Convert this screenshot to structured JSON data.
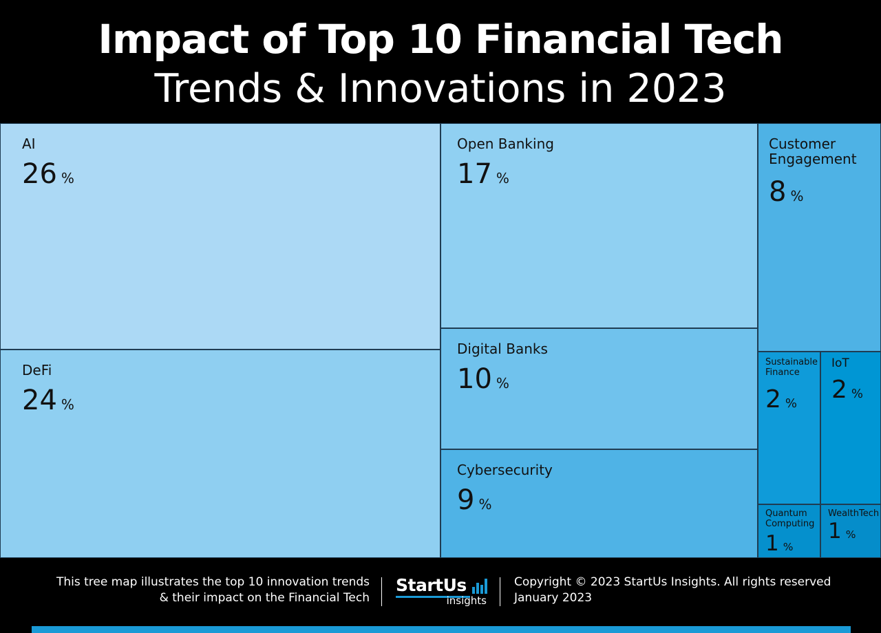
{
  "header": {
    "title_line_1": "Impact of Top 10 Financial Tech",
    "title_line_2": "Trends & Innovations in 2023"
  },
  "chart_data": {
    "type": "treemap",
    "title": "Impact of Top 10 Financial Tech Trends & Innovations in 2023",
    "unit": "%",
    "items": [
      {
        "label": "AI",
        "value": 26,
        "color": "#acd9f5"
      },
      {
        "label": "DeFi",
        "value": 24,
        "color": "#8fcff1"
      },
      {
        "label": "Open Banking",
        "value": 17,
        "color": "#90d0f2"
      },
      {
        "label": "Digital Banks",
        "value": 10,
        "color": "#70c2ed"
      },
      {
        "label": "Cybersecurity",
        "value": 9,
        "color": "#4fb3e6"
      },
      {
        "label": "Customer Engagement",
        "value": 8,
        "color": "#4eb2e5"
      },
      {
        "label": "Sustainable Finance",
        "value": 2,
        "color": "#0f9bd9"
      },
      {
        "label": "IoT",
        "value": 2,
        "color": "#0096d4"
      },
      {
        "label": "Quantum Computing",
        "value": 1,
        "color": "#0590cd"
      },
      {
        "label": "WealthTech",
        "value": 1,
        "color": "#058dca"
      }
    ]
  },
  "footer": {
    "description_line_1": "This tree map illustrates the top 10 innovation trends",
    "description_line_2": "& their impact on the Financial Tech",
    "logo_name": "StartUs",
    "logo_sub": "insights",
    "copyright": "Copyright © 2023 StartUs Insights. All rights reserved",
    "date": "January 2023",
    "accent_color": "#1a9ad6"
  }
}
